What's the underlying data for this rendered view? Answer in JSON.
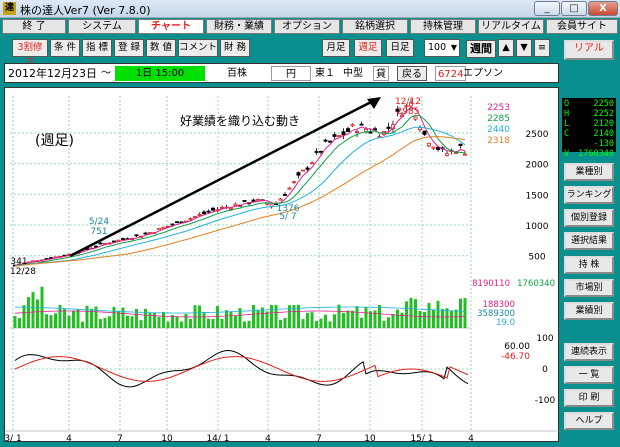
{
  "window": {
    "title": "株の達人Ver7 (Ver 7.8.0)",
    "icon": "達",
    "min": "_",
    "max": "□",
    "close": "X"
  },
  "menu": [
    "終 了",
    "システム",
    "チャート",
    "財務・業績",
    "オプション",
    "銘柄選択",
    "持株管理",
    "リアルタイム",
    "会員サイト"
  ],
  "menu_active": 2,
  "toolbar": {
    "left": [
      "3割修正",
      "条 件",
      "指 標",
      "登 録",
      "数 値",
      "コメント",
      "財 務"
    ],
    "period": [
      "月足",
      "週足",
      "日足"
    ],
    "period_active": 1,
    "count": "100",
    "count_unit": "週間",
    "up": "▲",
    "down": "▼",
    "menu": "≡",
    "real": "リアル"
  },
  "info": {
    "date": "2012年12月23日",
    "tilde": "〜",
    "range": "1日 15:00",
    "unit": "百株",
    "yen": "円",
    "market": "東１",
    "size": "中型",
    "kashi": "貸",
    "back": "戻る",
    "code": "6724",
    "name": "エプソン"
  },
  "quote": [
    [
      "O",
      "2250"
    ],
    [
      "H",
      "2252"
    ],
    [
      "L",
      "2120"
    ],
    [
      "C",
      "2140"
    ],
    [
      "",
      "-130"
    ],
    [
      "V",
      "1760340"
    ]
  ],
  "side": [
    "業種別",
    "ランキング",
    "個別登録",
    "選択結果",
    "持 株",
    "市場別",
    "業績別",
    "連続表示",
    "一 覧",
    "印 刷",
    "ヘルプ"
  ],
  "chart_data": {
    "type": "candlestick",
    "annotations": {
      "label1": "(週足)",
      "label2": "好業績を織り込む動き",
      "high_date": "12/12",
      "high_val": "2985",
      "d1": "5/24",
      "v1": "751",
      "d2": "5/ 7",
      "v2": "1376",
      "start_date": "12/28",
      "start_val": "341"
    },
    "ma_legend": [
      "2253",
      "2285",
      "2440",
      "2318"
    ],
    "ma_colors": [
      "#e0208f",
      "#10a040",
      "#20b0e0",
      "#e08020"
    ],
    "price_ticks": [
      "2500",
      "2000",
      "1500",
      "1000",
      "500"
    ],
    "volume_legend": {
      "v1": "8190110",
      "v2": "1760340",
      "m1": "188300",
      "m2": "3589300",
      "m3": "19.0"
    },
    "osc_legend": {
      "a": "60.00",
      "b": "-46.70"
    },
    "osc_ticks": [
      "100",
      "0",
      "-100"
    ],
    "x_ticks": [
      "3/ 1",
      "4",
      "7",
      "10",
      "14/ 1",
      "4",
      "7",
      "10",
      "15/ 1",
      "4"
    ]
  }
}
